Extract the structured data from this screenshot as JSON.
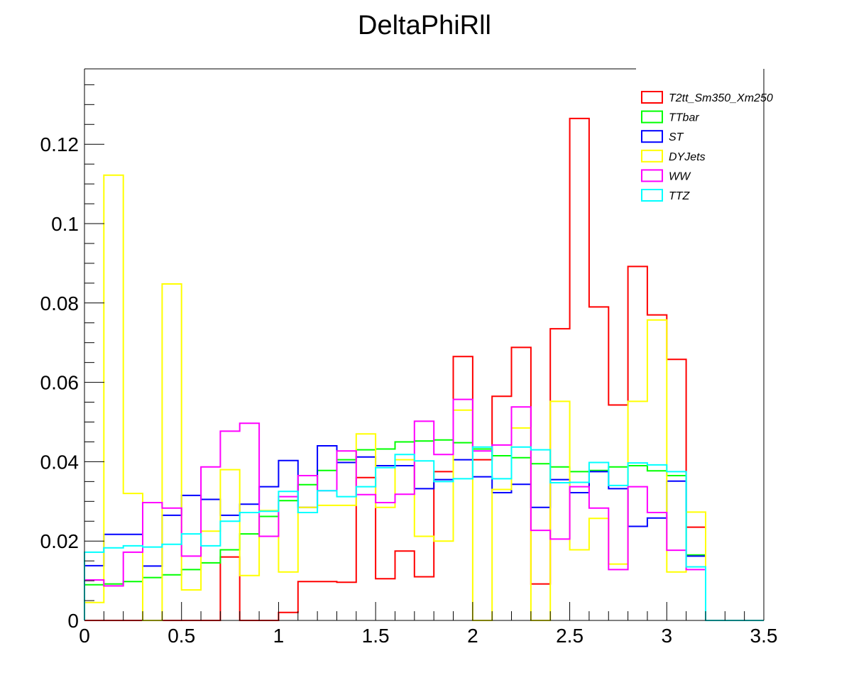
{
  "chart_data": {
    "type": "histogram",
    "title": "DeltaPhiRll",
    "xlabel": "",
    "ylabel": "",
    "xlim": [
      0,
      3.5
    ],
    "ylim": [
      0,
      0.139
    ],
    "grid": false,
    "legend_position": "top-right",
    "x_tick_labels": [
      "0",
      "0.5",
      "1",
      "1.5",
      "2",
      "2.5",
      "3",
      "3.5"
    ],
    "y_tick_labels": [
      "0",
      "0.02",
      "0.04",
      "0.06",
      "0.08",
      "0.1",
      "0.12"
    ],
    "bin_edges": [
      0,
      0.1,
      0.2,
      0.3,
      0.4,
      0.5,
      0.6,
      0.7,
      0.8,
      0.9,
      1.0,
      1.1,
      1.2,
      1.3,
      1.4,
      1.5,
      1.6,
      1.7,
      1.8,
      1.9,
      2.0,
      2.1,
      2.2,
      2.3,
      2.4,
      2.5,
      2.6,
      2.7,
      2.8,
      2.9,
      3.0,
      3.1,
      3.2,
      3.3,
      3.4,
      3.5
    ],
    "series": [
      {
        "name": "T2tt_Sm350_Xm250",
        "color": "#ff0000",
        "values": [
          0,
          0,
          0,
          0,
          0,
          0,
          0,
          0.016,
          0,
          0,
          0.002,
          0.0098,
          0.0098,
          0.0096,
          0.036,
          0.0105,
          0.0175,
          0.011,
          0.0375,
          0.0665,
          0.0405,
          0.0565,
          0.0688,
          0.0092,
          0.0735,
          0.1265,
          0.079,
          0.0543,
          0.0892,
          0.077,
          0.0658,
          0.0235,
          0,
          0,
          0
        ]
      },
      {
        "name": "TTbar",
        "color": "#00ff00",
        "values": [
          0.009,
          0.0092,
          0.0098,
          0.0108,
          0.0115,
          0.0128,
          0.0145,
          0.0178,
          0.0218,
          0.0262,
          0.0302,
          0.0342,
          0.0378,
          0.0405,
          0.043,
          0.0432,
          0.045,
          0.0452,
          0.0455,
          0.0448,
          0.0432,
          0.0415,
          0.041,
          0.0395,
          0.0387,
          0.0375,
          0.0378,
          0.0387,
          0.039,
          0.0377,
          0.0365,
          0.0165,
          0,
          0,
          0
        ]
      },
      {
        "name": "ST",
        "color": "#0000ff",
        "values": [
          0.0138,
          0.0217,
          0.0217,
          0.0137,
          0.0265,
          0.0315,
          0.0305,
          0.0265,
          0.0293,
          0.0337,
          0.0403,
          0.0285,
          0.044,
          0.0398,
          0.0412,
          0.039,
          0.039,
          0.0332,
          0.0355,
          0.0405,
          0.0362,
          0.0322,
          0.0343,
          0.0285,
          0.0355,
          0.0322,
          0.0375,
          0.0332,
          0.0237,
          0.0258,
          0.0351,
          0.0162,
          0,
          0,
          0
        ]
      },
      {
        "name": "DYJets",
        "color": "#ffff00",
        "values": [
          0.0045,
          0.1122,
          0.032,
          0,
          0.0848,
          0.0077,
          0.0225,
          0.038,
          0.0113,
          0.0277,
          0.0122,
          0.0285,
          0.029,
          0.029,
          0.047,
          0.0285,
          0.0405,
          0.0212,
          0.02,
          0.053,
          0,
          0.033,
          0.0485,
          0,
          0.0552,
          0.0178,
          0.0257,
          0.0142,
          0.0552,
          0.0757,
          0.0122,
          0.0273,
          0,
          0,
          0
        ]
      },
      {
        "name": "WW",
        "color": "#ff00ff",
        "values": [
          0.0102,
          0.0087,
          0.0172,
          0.0297,
          0.0283,
          0.0162,
          0.0387,
          0.0477,
          0.0497,
          0.0212,
          0.0312,
          0.0365,
          0.0327,
          0.0427,
          0.0317,
          0.0297,
          0.0318,
          0.0502,
          0.0418,
          0.0557,
          0.0427,
          0.0442,
          0.0538,
          0.0227,
          0.0205,
          0.0337,
          0.0283,
          0.0128,
          0.0337,
          0.0272,
          0.0177,
          0.0128,
          0,
          0,
          0
        ]
      },
      {
        "name": "TTZ",
        "color": "#00ffff",
        "values": [
          0.0172,
          0.0183,
          0.0188,
          0.0185,
          0.0192,
          0.0218,
          0.0188,
          0.025,
          0.0272,
          0.0275,
          0.0325,
          0.0272,
          0.0327,
          0.0312,
          0.0337,
          0.0385,
          0.0418,
          0.0402,
          0.035,
          0.0357,
          0.0437,
          0.0357,
          0.0437,
          0.043,
          0.0347,
          0.0348,
          0.0398,
          0.034,
          0.0397,
          0.0392,
          0.0375,
          0.0135,
          0,
          0,
          0
        ]
      }
    ]
  }
}
